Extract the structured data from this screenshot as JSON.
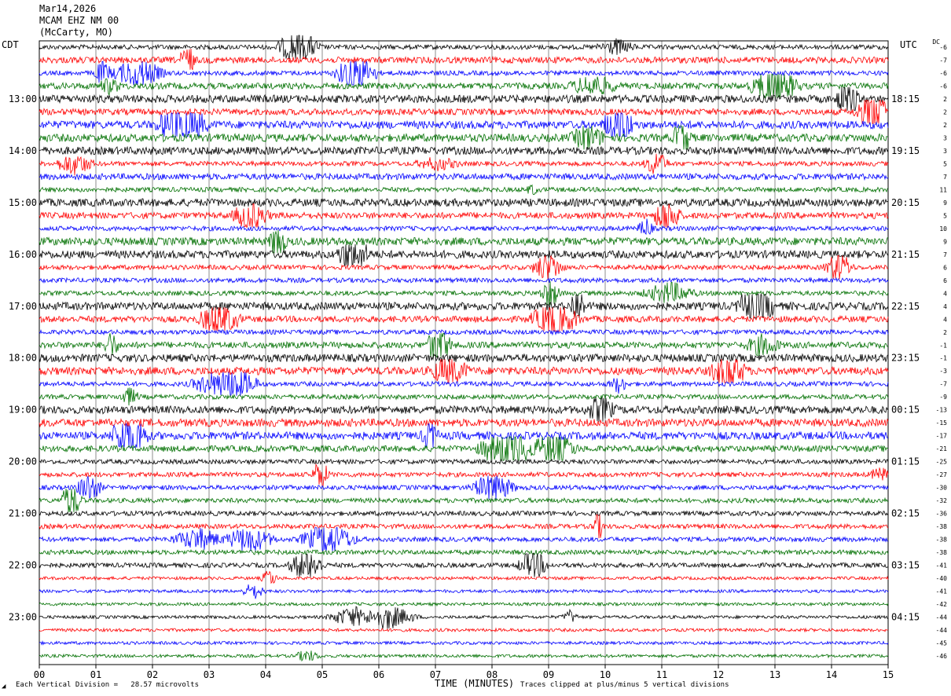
{
  "header": {
    "date": "Mar14,2026",
    "station": "MCAM EHZ NM 00",
    "location": "(McCarty, MO)"
  },
  "axis": {
    "left_zone": "CDT",
    "right_zone": "UTC",
    "dc_label": "DC",
    "xlabel": "TIME (MINUTES)",
    "scale_note": "Each Vertical Division =   28.57 microvolts",
    "clip_note": "Traces clipped at plus/minus 5 vertical divisions",
    "corner_mark": "◢"
  },
  "colors": {
    "trace_cycle": [
      "#000000",
      "#ff0000",
      "#0000ff",
      "#007000"
    ],
    "grid": "#000000",
    "background": "#ffffff"
  },
  "chart_data": {
    "type": "line",
    "title": "",
    "xlabel": "TIME (MINUTES)",
    "x_ticks": [
      "00",
      "01",
      "02",
      "03",
      "04",
      "05",
      "06",
      "07",
      "08",
      "09",
      "10",
      "11",
      "12",
      "13",
      "14",
      "15"
    ],
    "xlim": [
      0,
      15
    ],
    "trace_count": 48,
    "trace_interval_minutes": 15,
    "left_ticks": [
      {
        "label": "13:00",
        "trace": 4
      },
      {
        "label": "14:00",
        "trace": 8
      },
      {
        "label": "15:00",
        "trace": 12
      },
      {
        "label": "16:00",
        "trace": 16
      },
      {
        "label": "17:00",
        "trace": 20
      },
      {
        "label": "18:00",
        "trace": 24
      },
      {
        "label": "19:00",
        "trace": 28
      },
      {
        "label": "20:00",
        "trace": 32
      },
      {
        "label": "21:00",
        "trace": 36
      },
      {
        "label": "22:00",
        "trace": 40
      },
      {
        "label": "23:00",
        "trace": 44
      }
    ],
    "right_ticks": [
      {
        "label": "18:15",
        "trace": 4
      },
      {
        "label": "19:15",
        "trace": 8
      },
      {
        "label": "20:15",
        "trace": 12
      },
      {
        "label": "21:15",
        "trace": 16
      },
      {
        "label": "22:15",
        "trace": 20
      },
      {
        "label": "23:15",
        "trace": 24
      },
      {
        "label": "00:15",
        "trace": 28
      },
      {
        "label": "01:15",
        "trace": 32
      },
      {
        "label": "02:15",
        "trace": 36
      },
      {
        "label": "03:15",
        "trace": 40
      },
      {
        "label": "04:15",
        "trace": 44
      }
    ],
    "dc_offsets": [
      -6,
      -7,
      -6,
      -6,
      2,
      2,
      2,
      3,
      3,
      5,
      7,
      11,
      9,
      5,
      10,
      9,
      7,
      6,
      6,
      4,
      4,
      4,
      2,
      -1,
      -1,
      -3,
      -7,
      -9,
      -13,
      -15,
      -17,
      -21,
      -25,
      -27,
      -30,
      -32,
      -36,
      -38,
      -38,
      -38,
      -41,
      -40,
      -41,
      -42,
      -44,
      -44,
      -45,
      -46
    ],
    "trace_amplitudes": [
      3,
      4,
      3,
      4,
      5,
      4,
      5,
      5,
      5,
      3,
      4,
      3,
      5,
      4,
      3,
      5,
      5,
      3,
      3,
      3,
      5,
      4,
      3,
      4,
      5,
      5,
      3,
      3,
      5,
      5,
      5,
      4,
      3,
      3,
      3,
      3,
      3,
      3,
      3,
      3,
      3,
      2,
      2,
      2,
      2,
      2,
      2,
      2
    ],
    "clip_divisions": 5,
    "microvolts_per_division": 28.57
  }
}
